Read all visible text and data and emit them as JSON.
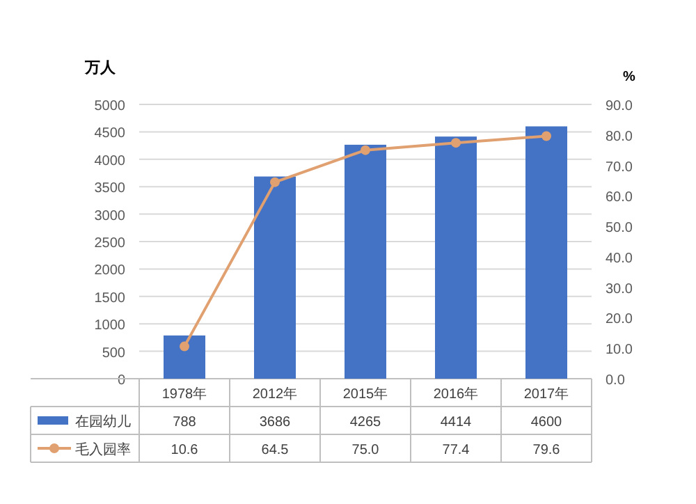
{
  "chart_data": {
    "type": "bar",
    "ylabel": "万人",
    "y2label": "%",
    "categories": [
      "1978年",
      "2012年",
      "2015年",
      "2016年",
      "2017年"
    ],
    "series": [
      {
        "name": "在园幼儿",
        "color": "#4472c4",
        "values": [
          788,
          3686,
          4265,
          4414,
          4600
        ],
        "value_labels": [
          "788",
          "3686",
          "4265",
          "4414",
          "4600"
        ]
      },
      {
        "name": "毛入园率",
        "type": "line",
        "axis": "y2",
        "color": "#e0a070",
        "values": [
          10.6,
          64.5,
          75.0,
          77.4,
          79.6
        ],
        "value_labels": [
          "10.6",
          "64.5",
          "75.0",
          "77.4",
          "79.6"
        ]
      }
    ],
    "ylim": [
      0,
      5000
    ],
    "yticks": [
      0,
      500,
      1000,
      1500,
      2000,
      2500,
      3000,
      3500,
      4000,
      4500,
      5000
    ],
    "y2lim": [
      0,
      90
    ],
    "y2ticks": [
      {
        "value": 0,
        "label": "0.0"
      },
      {
        "value": 10,
        "label": "10.0"
      },
      {
        "value": 20,
        "label": "20.0"
      },
      {
        "value": 30,
        "label": "30.0"
      },
      {
        "value": 40,
        "label": "40.0"
      },
      {
        "value": 50,
        "label": "50.0"
      },
      {
        "value": 60,
        "label": "60.0"
      },
      {
        "value": 70,
        "label": "70.0"
      },
      {
        "value": 80,
        "label": "80.0"
      },
      {
        "value": 90,
        "label": "90.0"
      }
    ],
    "grid": "y",
    "legend": "bottom",
    "marker": "circle"
  }
}
